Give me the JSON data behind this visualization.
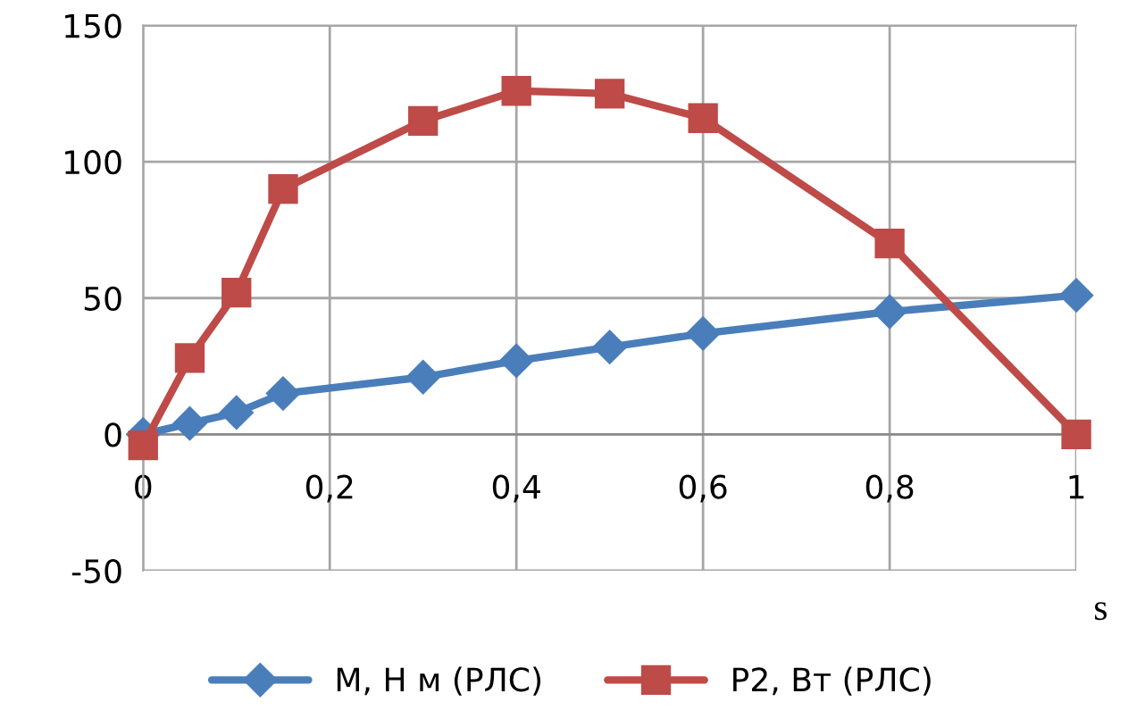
{
  "chart_data": {
    "type": "line",
    "xlabel": "s",
    "xlim": [
      0,
      1
    ],
    "ylim": [
      -50,
      150
    ],
    "xticks": [
      0,
      {
        "value": 0.2,
        "label": "0,2"
      },
      {
        "value": 0.4,
        "label": "0,4"
      },
      {
        "value": 0.6,
        "label": "0,6"
      },
      {
        "value": 0.8,
        "label": "0,8"
      },
      1
    ],
    "yticks": [
      -50,
      0,
      50,
      100,
      150
    ],
    "grid": true,
    "legend": "bottom",
    "line_style": "solid",
    "series": [
      {
        "name": "M, Н м (РЛС)",
        "color": "#4a7ebb",
        "marker": "diamond",
        "x": [
          0,
          0.05,
          0.1,
          0.15,
          0.3,
          0.4,
          0.5,
          0.6,
          0.8,
          1
        ],
        "values": [
          0,
          4,
          8,
          15,
          21,
          27,
          32,
          37,
          45,
          51
        ]
      },
      {
        "name": "P2, Вт (РЛС)",
        "color": "#be4b48",
        "marker": "square",
        "x": [
          0,
          0.05,
          0.1,
          0.15,
          0.3,
          0.4,
          0.5,
          0.6,
          0.8,
          1
        ],
        "values": [
          -4,
          28,
          52,
          90,
          115,
          126,
          125,
          116,
          70,
          0
        ]
      }
    ]
  }
}
